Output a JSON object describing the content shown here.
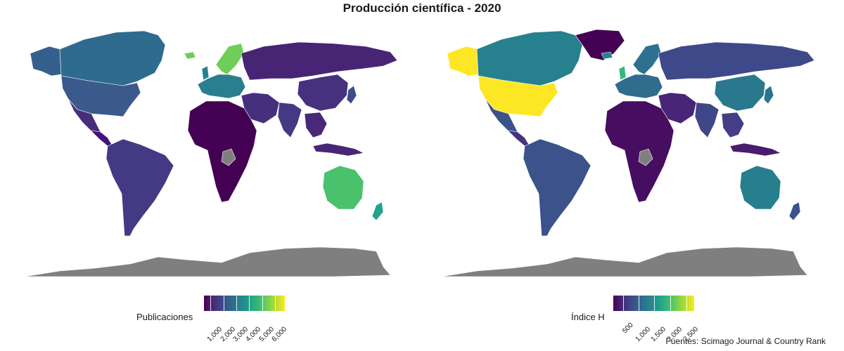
{
  "title": "Producción científica - 2020",
  "source": "Fuentes: Scimago Journal & Country Rank",
  "colors": {
    "na": "#7f7f7f",
    "viridis": [
      "#440154",
      "#482878",
      "#3e4989",
      "#31688e",
      "#26828e",
      "#1f9e89",
      "#35b779",
      "#6ece58",
      "#b5de2b",
      "#fde725"
    ]
  },
  "maps": [
    {
      "legend_title": "Publicaciones",
      "ticks": [
        "1,000",
        "2,000",
        "3,000",
        "4,000",
        "5,000",
        "6,000"
      ],
      "fills": {
        "canada": "#2f6b8e",
        "alaska": "#35608d",
        "usa": "#3b5a8c",
        "greenland": "#ffffff",
        "mexico": "#472d7b",
        "central_america": "#45127a",
        "south_america": "#433a83",
        "europe": "#2a7f8e",
        "scandinavia": "#6ece58",
        "iceland": "#6ece58",
        "uk": "#26828e",
        "russia": "#482475",
        "africa": "#440154",
        "middle_east": "#46307e",
        "india": "#443983",
        "china": "#46317e",
        "se_asia": "#482878",
        "japan": "#3f4a8a",
        "indonesia": "#482575",
        "australia": "#4ac16d",
        "new_zealand": "#25a18e",
        "antarctica": "#7f7f7f",
        "na_patch": "#7f7f7f"
      }
    },
    {
      "legend_title": "Índice H",
      "ticks": [
        "500",
        "1,000",
        "1,500",
        "2,000",
        "2,500"
      ],
      "fills": {
        "canada": "#27808e",
        "alaska": "#fde725",
        "usa": "#fde725",
        "greenland": "#440154",
        "mexico": "#3b528b",
        "central_america": "#45337d",
        "south_america": "#3b528b",
        "europe": "#2f6c8e",
        "scandinavia": "#2c728e",
        "iceland": "#26818e",
        "uk": "#35b779",
        "russia": "#3e4989",
        "africa": "#470d60",
        "middle_east": "#482576",
        "india": "#3f4788",
        "china": "#2a788e",
        "se_asia": "#433e85",
        "japan": "#2a768e",
        "indonesia": "#481c6e",
        "australia": "#277f8e",
        "new_zealand": "#3b528b",
        "antarctica": "#7f7f7f",
        "na_patch": "#7f7f7f"
      }
    }
  ]
}
